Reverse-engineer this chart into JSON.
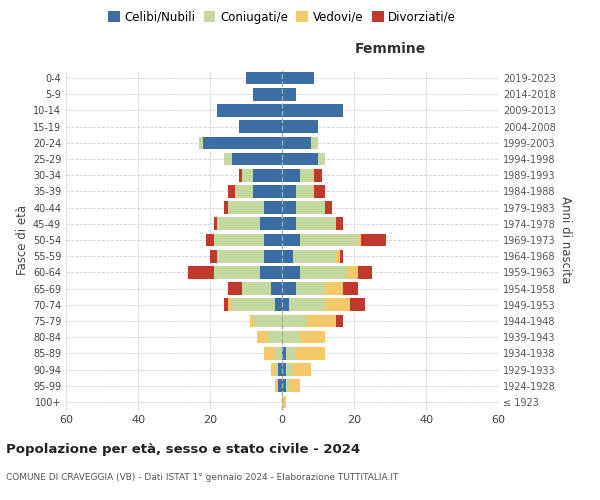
{
  "age_groups": [
    "100+",
    "95-99",
    "90-94",
    "85-89",
    "80-84",
    "75-79",
    "70-74",
    "65-69",
    "60-64",
    "55-59",
    "50-54",
    "45-49",
    "40-44",
    "35-39",
    "30-34",
    "25-29",
    "20-24",
    "15-19",
    "10-14",
    "5-9",
    "0-4"
  ],
  "birth_years": [
    "≤ 1923",
    "1924-1928",
    "1929-1933",
    "1934-1938",
    "1939-1943",
    "1944-1948",
    "1949-1953",
    "1954-1958",
    "1959-1963",
    "1964-1968",
    "1969-1973",
    "1974-1978",
    "1979-1983",
    "1984-1988",
    "1989-1993",
    "1994-1998",
    "1999-2003",
    "2004-2008",
    "2009-2013",
    "2014-2018",
    "2019-2023"
  ],
  "males": {
    "celibi": [
      0,
      1,
      1,
      0,
      0,
      0,
      2,
      3,
      6,
      5,
      5,
      6,
      5,
      8,
      8,
      14,
      22,
      12,
      18,
      8,
      10
    ],
    "coniugati": [
      0,
      0,
      1,
      2,
      4,
      8,
      12,
      8,
      13,
      13,
      14,
      12,
      10,
      5,
      3,
      2,
      1,
      0,
      0,
      0,
      0
    ],
    "vedovi": [
      0,
      1,
      1,
      3,
      3,
      1,
      1,
      0,
      0,
      0,
      0,
      0,
      0,
      0,
      0,
      0,
      0,
      0,
      0,
      0,
      0
    ],
    "divorziati": [
      0,
      0,
      0,
      0,
      0,
      0,
      1,
      4,
      7,
      2,
      2,
      1,
      1,
      2,
      1,
      0,
      0,
      0,
      0,
      0,
      0
    ]
  },
  "females": {
    "nubili": [
      0,
      1,
      1,
      1,
      0,
      0,
      2,
      4,
      5,
      3,
      5,
      4,
      4,
      4,
      5,
      10,
      8,
      10,
      17,
      4,
      9
    ],
    "coniugate": [
      0,
      1,
      2,
      3,
      5,
      7,
      10,
      8,
      13,
      12,
      16,
      11,
      8,
      5,
      4,
      2,
      2,
      0,
      0,
      0,
      0
    ],
    "vedove": [
      1,
      3,
      5,
      8,
      7,
      8,
      7,
      5,
      3,
      1,
      1,
      0,
      0,
      0,
      0,
      0,
      0,
      0,
      0,
      0,
      0
    ],
    "divorziate": [
      0,
      0,
      0,
      0,
      0,
      2,
      4,
      4,
      4,
      1,
      7,
      2,
      2,
      3,
      2,
      0,
      0,
      0,
      0,
      0,
      0
    ]
  },
  "colors": {
    "celibi": "#3a6ea5",
    "coniugati": "#c5d8a0",
    "vedovi": "#f5c96a",
    "divorziati": "#c0392b"
  },
  "title": "Popolazione per età, sesso e stato civile - 2024",
  "subtitle": "COMUNE DI CRAVEGGIA (VB) - Dati ISTAT 1° gennaio 2024 - Elaborazione TUTTITALIA.IT",
  "xlabel_right": "Femmine",
  "ylabel_left": "Fasce di età",
  "ylabel_right": "Anni di nascita",
  "xlim": 60,
  "background_color": "#ffffff",
  "grid_color": "#cccccc"
}
